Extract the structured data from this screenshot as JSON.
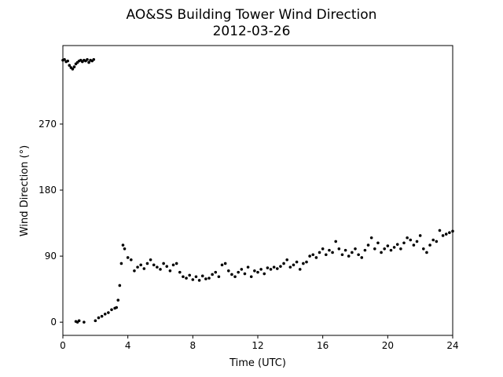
{
  "chart_data": {
    "type": "scatter",
    "title": "AO&SS Building Tower Wind Direction",
    "subtitle": "2012-03-26",
    "x_label": "Time (UTC)",
    "y_label": "Wind Direction (°)",
    "color": "#000000",
    "xlim": [
      0,
      24
    ],
    "xticks": [
      0,
      4,
      8,
      12,
      16,
      20,
      24
    ],
    "ylim": [
      -18,
      377
    ],
    "yticks": [
      0,
      90,
      180,
      270
    ],
    "x": [
      0,
      0.1,
      0.2,
      0.3,
      0.4,
      0.5,
      0.6,
      0.7,
      0.8,
      0.9,
      1.0,
      1.1,
      1.2,
      1.3,
      1.4,
      1.5,
      1.6,
      1.7,
      1.8,
      1.9,
      0.8,
      0.9,
      1.0,
      1.3,
      2.0,
      2.2,
      2.4,
      2.6,
      2.8,
      3.0,
      3.2,
      3.3,
      3.4,
      3.5,
      3.6,
      3.7,
      3.8,
      4.0,
      4.2,
      4.4,
      4.6,
      4.8,
      5.0,
      5.2,
      5.4,
      5.6,
      5.8,
      6.0,
      6.2,
      6.4,
      6.6,
      6.8,
      7.0,
      7.2,
      7.4,
      7.6,
      7.8,
      8.0,
      8.2,
      8.4,
      8.6,
      8.8,
      9.0,
      9.2,
      9.4,
      9.6,
      9.8,
      10.0,
      10.2,
      10.4,
      10.6,
      10.8,
      11.0,
      11.2,
      11.4,
      11.6,
      11.8,
      12.0,
      12.2,
      12.4,
      12.6,
      12.8,
      13.0,
      13.2,
      13.4,
      13.6,
      13.8,
      14.0,
      14.2,
      14.4,
      14.6,
      14.8,
      15.0,
      15.2,
      15.4,
      15.6,
      15.8,
      16.0,
      16.2,
      16.4,
      16.6,
      16.8,
      17.0,
      17.2,
      17.4,
      17.6,
      17.8,
      18.0,
      18.2,
      18.4,
      18.6,
      18.8,
      19.0,
      19.2,
      19.4,
      19.6,
      19.8,
      20.0,
      20.2,
      20.4,
      20.6,
      20.8,
      21.0,
      21.2,
      21.4,
      21.6,
      21.8,
      22.0,
      22.2,
      22.4,
      22.6,
      22.8,
      23.0,
      23.2,
      23.4,
      23.6,
      23.8,
      24.0
    ],
    "values": [
      357,
      358,
      355,
      356,
      350,
      347,
      345,
      348,
      352,
      354,
      356,
      357,
      355,
      357,
      356,
      358,
      354,
      357,
      356,
      358,
      1,
      0,
      2,
      0,
      2,
      6,
      8,
      11,
      13,
      17,
      19,
      20,
      30,
      50,
      80,
      105,
      100,
      88,
      85,
      70,
      75,
      78,
      73,
      80,
      85,
      78,
      75,
      72,
      80,
      76,
      70,
      78,
      80,
      68,
      62,
      60,
      64,
      58,
      62,
      57,
      63,
      59,
      60,
      65,
      68,
      62,
      78,
      80,
      70,
      65,
      62,
      68,
      72,
      66,
      75,
      62,
      70,
      68,
      72,
      66,
      74,
      72,
      75,
      73,
      76,
      80,
      85,
      75,
      78,
      82,
      72,
      80,
      82,
      90,
      92,
      88,
      95,
      100,
      92,
      98,
      95,
      110,
      100,
      92,
      98,
      90,
      95,
      100,
      92,
      88,
      98,
      105,
      115,
      100,
      108,
      95,
      100,
      104,
      98,
      102,
      106,
      100,
      108,
      115,
      112,
      105,
      110,
      118,
      100,
      95,
      105,
      112,
      110,
      125,
      118,
      120,
      122,
      124
    ]
  }
}
